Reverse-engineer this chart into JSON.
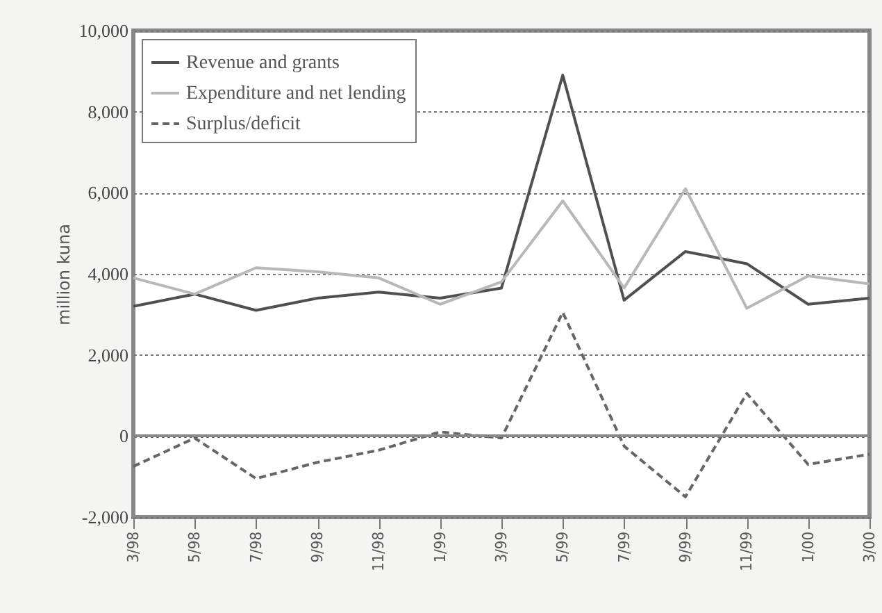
{
  "chart_data": {
    "type": "line",
    "ylabel": "million kuna",
    "categories": [
      "3/98",
      "5/98",
      "7/98",
      "9/98",
      "11/98",
      "1/99",
      "3/99",
      "5/99",
      "7/99",
      "9/99",
      "11/99",
      "1/00",
      "3/00"
    ],
    "series": [
      {
        "name": "Revenue and grants",
        "color": "#505050",
        "line_style": "solid",
        "values": [
          3200,
          3500,
          3100,
          3400,
          3550,
          3400,
          3650,
          8900,
          3350,
          4550,
          4250,
          3250,
          3400
        ]
      },
      {
        "name": "Expenditure and net lending",
        "color": "#b8b8b8",
        "line_style": "solid",
        "values": [
          3900,
          3500,
          4150,
          4050,
          3900,
          3250,
          3800,
          5800,
          3650,
          6100,
          3150,
          3950,
          3750
        ]
      },
      {
        "name": "Surplus/deficit",
        "color": "#666666",
        "line_style": "dashed",
        "values": [
          -750,
          -50,
          -1050,
          -650,
          -350,
          100,
          -50,
          3050,
          -250,
          -1500,
          1050,
          -700,
          -450
        ]
      }
    ],
    "ylim": [
      -2000,
      10000
    ],
    "yticks": [
      {
        "value": -2000,
        "label": "-2,000"
      },
      0,
      {
        "value": 2000,
        "label": "2,000"
      },
      {
        "value": 4000,
        "label": "4,000"
      },
      {
        "value": 6000,
        "label": "6,000"
      },
      {
        "value": 8000,
        "label": "8,000"
      },
      {
        "value": 10000,
        "label": "10,000"
      }
    ],
    "grid": "y",
    "legend": "top left",
    "marker": "none",
    "ref_lines": [
      {
        "axis": "y",
        "value": 0,
        "color": "#888888"
      }
    ]
  }
}
